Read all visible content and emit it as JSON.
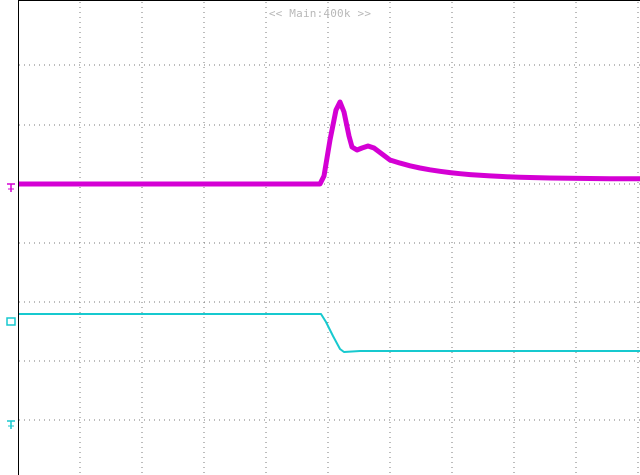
{
  "header": {
    "zoom_label": "<< Main:400k >>"
  },
  "channels": [
    {
      "name": "magenta-trace",
      "color": "#d400d4",
      "ground_marker": "ground-marker"
    },
    {
      "name": "cyan-trace",
      "color": "#17c9cf",
      "ground_marker": "ground-marker"
    }
  ],
  "colors": {
    "background": "#ffffff",
    "grid": "#7a7a7a",
    "border": "#000000",
    "label": "#b8b8b8"
  },
  "icons": [
    "channel1-ground-marker-icon",
    "channel2-ground-marker-icon",
    "channel2-offset-marker-icon"
  ]
}
